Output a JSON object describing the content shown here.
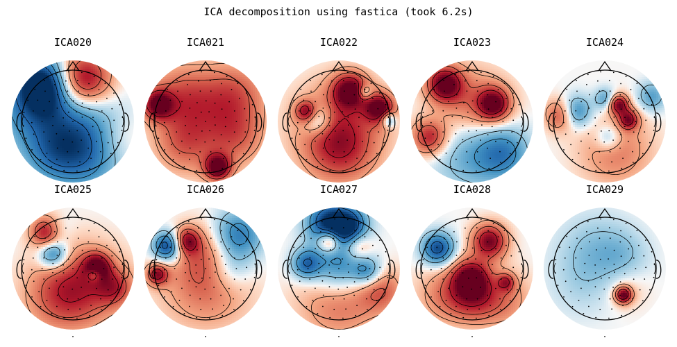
{
  "figure": {
    "title": "ICA decomposition using fastica (took 6.2s)"
  },
  "colors": {
    "positive": "#b2182b",
    "negative": "#2166ac",
    "neutral": "#f7f7f7"
  },
  "components": [
    {
      "label": "ICA020",
      "blobs": [
        [
          0.18,
          -0.82,
          0.38,
          1.0
        ],
        [
          -0.62,
          -0.75,
          0.38,
          -1.0
        ],
        [
          -0.75,
          -0.2,
          0.55,
          -0.55
        ],
        [
          0.2,
          0.05,
          0.55,
          -0.45
        ],
        [
          0.2,
          0.7,
          0.5,
          -0.5
        ],
        [
          -0.45,
          0.65,
          0.4,
          -0.35
        ],
        [
          0.85,
          0.3,
          0.35,
          0.2
        ]
      ]
    },
    {
      "label": "ICA021",
      "blobs": [
        [
          0.22,
          0.88,
          0.18,
          1.0
        ],
        [
          -0.95,
          -0.35,
          0.2,
          0.9
        ],
        [
          -0.5,
          -0.5,
          0.45,
          0.45
        ],
        [
          0.55,
          -0.55,
          0.45,
          0.45
        ],
        [
          0.0,
          0.0,
          0.6,
          0.3
        ],
        [
          0.6,
          0.3,
          0.4,
          0.35
        ],
        [
          -0.45,
          0.45,
          0.4,
          0.35
        ]
      ]
    },
    {
      "label": "ICA022",
      "blobs": [
        [
          0.2,
          -0.62,
          0.24,
          0.95
        ],
        [
          0.78,
          -0.28,
          0.2,
          0.95
        ],
        [
          -0.65,
          -0.2,
          0.15,
          0.8
        ],
        [
          -0.45,
          -0.05,
          0.2,
          -0.6
        ],
        [
          0.5,
          -0.58,
          0.1,
          -0.55
        ],
        [
          0.95,
          -0.05,
          0.1,
          -0.6
        ],
        [
          0.0,
          0.1,
          0.6,
          0.6
        ],
        [
          0.0,
          0.6,
          0.45,
          0.4
        ]
      ]
    },
    {
      "label": "ICA023",
      "blobs": [
        [
          -0.55,
          -0.75,
          0.25,
          1.0
        ],
        [
          0.4,
          -0.35,
          0.22,
          0.95
        ],
        [
          0.0,
          -0.3,
          0.5,
          0.5
        ],
        [
          -0.85,
          0.3,
          0.25,
          0.75
        ],
        [
          0.0,
          0.55,
          0.55,
          -0.45
        ],
        [
          0.6,
          0.6,
          0.35,
          -0.5
        ]
      ]
    },
    {
      "label": "ICA024",
      "blobs": [
        [
          0.25,
          -0.35,
          0.14,
          0.95
        ],
        [
          0.45,
          -0.05,
          0.14,
          0.8
        ],
        [
          -0.85,
          -0.15,
          0.22,
          0.7
        ],
        [
          -0.6,
          -0.2,
          0.22,
          -0.75
        ],
        [
          0.0,
          -0.45,
          0.15,
          -0.5
        ],
        [
          0.05,
          0.3,
          0.18,
          -0.4
        ],
        [
          0.9,
          -0.5,
          0.2,
          -0.45
        ],
        [
          0.2,
          0.55,
          0.5,
          0.4
        ]
      ]
    },
    {
      "label": "ICA025",
      "blobs": [
        [
          -0.5,
          -0.72,
          0.22,
          1.0
        ],
        [
          0.45,
          -0.05,
          0.18,
          0.85
        ],
        [
          -0.4,
          -0.3,
          0.2,
          -0.8
        ],
        [
          0.4,
          0.1,
          0.1,
          -0.55
        ],
        [
          -0.35,
          -0.75,
          0.2,
          -0.45
        ],
        [
          0.2,
          0.3,
          0.55,
          0.55
        ],
        [
          0.8,
          0.35,
          0.25,
          0.5
        ],
        [
          -0.3,
          0.55,
          0.5,
          0.4
        ]
      ]
    },
    {
      "label": "ICA026",
      "blobs": [
        [
          -0.75,
          -0.45,
          0.2,
          -1.0
        ],
        [
          -0.38,
          -0.55,
          0.18,
          0.8
        ],
        [
          -0.95,
          0.1,
          0.15,
          0.8
        ],
        [
          0.6,
          -0.65,
          0.35,
          -0.7
        ],
        [
          0.45,
          0.0,
          0.3,
          -0.35
        ],
        [
          0.0,
          0.3,
          0.6,
          0.45
        ],
        [
          0.0,
          -0.3,
          0.4,
          0.3
        ]
      ]
    },
    {
      "label": "ICA027",
      "blobs": [
        [
          -0.2,
          -0.9,
          0.3,
          -1.0
        ],
        [
          0.2,
          -0.85,
          0.25,
          -0.8
        ],
        [
          -0.2,
          -0.55,
          0.16,
          0.85
        ],
        [
          0.35,
          -0.45,
          0.2,
          0.45
        ],
        [
          0.0,
          -0.05,
          0.4,
          -0.75
        ],
        [
          -0.65,
          -0.1,
          0.2,
          -0.7
        ],
        [
          0.55,
          0.05,
          0.2,
          -0.55
        ],
        [
          0.0,
          0.55,
          0.55,
          0.5
        ],
        [
          0.8,
          0.4,
          0.3,
          0.45
        ]
      ]
    },
    {
      "label": "ICA028",
      "blobs": [
        [
          0.32,
          -0.55,
          0.24,
          0.95
        ],
        [
          -0.68,
          -0.4,
          0.22,
          -0.9
        ],
        [
          -0.05,
          0.15,
          0.25,
          0.8
        ],
        [
          0.0,
          0.5,
          0.35,
          0.6
        ],
        [
          0.65,
          0.25,
          0.12,
          0.55
        ],
        [
          0.6,
          0.6,
          0.4,
          0.35
        ],
        [
          -0.55,
          0.5,
          0.4,
          0.35
        ]
      ]
    },
    {
      "label": "ICA029",
      "blobs": [
        [
          0.35,
          0.5,
          0.12,
          1.0
        ],
        [
          -0.2,
          -0.35,
          0.5,
          -0.28
        ],
        [
          0.35,
          -0.25,
          0.35,
          -0.2
        ],
        [
          -0.5,
          0.35,
          0.45,
          -0.12
        ],
        [
          0.4,
          0.35,
          0.3,
          0.15
        ]
      ]
    }
  ]
}
